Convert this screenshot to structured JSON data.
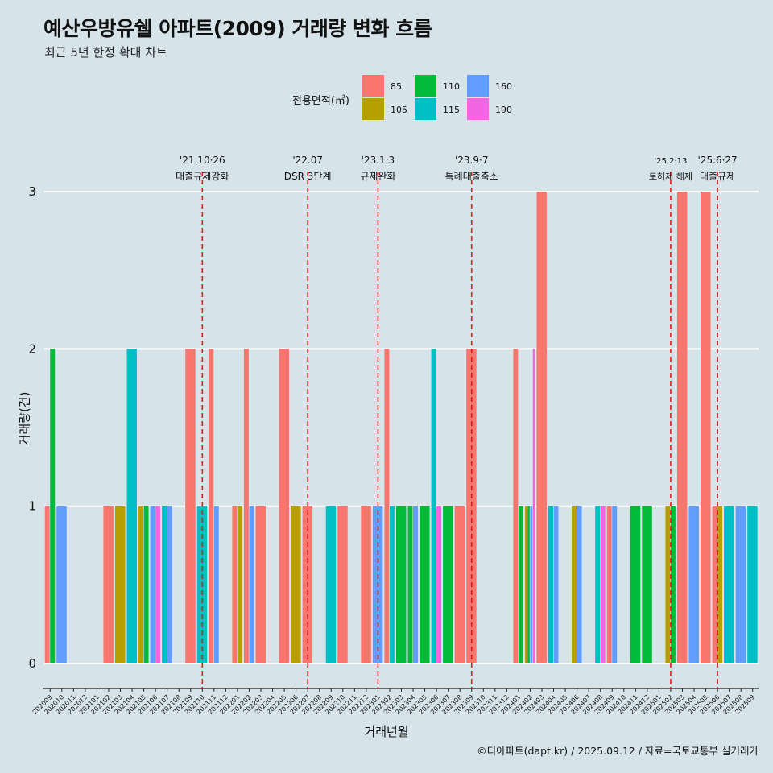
{
  "title": "예산우방유쉘 아파트(2009) 거래량 변화 흐름",
  "subtitle": "최근 5년 한정 확대 차트",
  "credit": "©디아파트(dapt.kr) / 2025.09.12 / 자료=국토교통부 실거래가",
  "legend": {
    "title": "전용면적(㎡)",
    "items": [
      {
        "label": "85",
        "color": "#f8766d"
      },
      {
        "label": "105",
        "color": "#b79f00"
      },
      {
        "label": "110",
        "color": "#00ba38"
      },
      {
        "label": "115",
        "color": "#00bfc4"
      },
      {
        "label": "160",
        "color": "#619cff"
      },
      {
        "label": "190",
        "color": "#f564e3"
      }
    ]
  },
  "chart_data": {
    "type": "bar",
    "xlabel": "거래년월",
    "ylabel": "거래량(건)",
    "ylim": [
      0,
      3
    ],
    "yticks": [
      0,
      1,
      2,
      3
    ],
    "grid": true,
    "legend_position": "top",
    "categories": [
      "202009",
      "202010",
      "202011",
      "202012",
      "202101",
      "202102",
      "202103",
      "202104",
      "202105",
      "202106",
      "202107",
      "202108",
      "202109",
      "202110",
      "202111",
      "202112",
      "202201",
      "202202",
      "202203",
      "202204",
      "202205",
      "202206",
      "202207",
      "202208",
      "202209",
      "202210",
      "202211",
      "202212",
      "202301",
      "202302",
      "202303",
      "202304",
      "202305",
      "202306",
      "202307",
      "202308",
      "202309",
      "202310",
      "202311",
      "202312",
      "202401",
      "202402",
      "202403",
      "202404",
      "202405",
      "202406",
      "202407",
      "202408",
      "202409",
      "202410",
      "202411",
      "202412",
      "202501",
      "202502",
      "202503",
      "202504",
      "202505",
      "202506",
      "202507",
      "202508",
      "202509"
    ],
    "series": [
      {
        "name": "85",
        "color": "#f8766d",
        "values": [
          1,
          0,
          0,
          0,
          0,
          1,
          0,
          0,
          0,
          0,
          0,
          0,
          2,
          0,
          2,
          0,
          1,
          2,
          1,
          0,
          2,
          0,
          1,
          0,
          0,
          1,
          0,
          1,
          0,
          2,
          0,
          0,
          0,
          0,
          0,
          1,
          2,
          0,
          0,
          0,
          2,
          0,
          3,
          0,
          0,
          0,
          0,
          0,
          1,
          0,
          0,
          0,
          0,
          0,
          3,
          0,
          3,
          1,
          0,
          0,
          0
        ]
      },
      {
        "name": "105",
        "color": "#b79f00",
        "values": [
          0,
          0,
          0,
          0,
          0,
          0,
          1,
          0,
          1,
          0,
          0,
          0,
          0,
          0,
          0,
          0,
          1,
          0,
          0,
          0,
          0,
          1,
          0,
          0,
          0,
          0,
          0,
          0,
          0,
          0,
          0,
          0,
          0,
          0,
          0,
          0,
          0,
          0,
          0,
          0,
          0,
          1,
          0,
          0,
          0,
          1,
          0,
          0,
          0,
          0,
          0,
          0,
          0,
          1,
          0,
          0,
          0,
          1,
          0,
          0,
          0
        ]
      },
      {
        "name": "110",
        "color": "#00ba38",
        "values": [
          2,
          0,
          0,
          0,
          0,
          0,
          0,
          0,
          1,
          0,
          0,
          0,
          0,
          0,
          0,
          0,
          0,
          0,
          0,
          0,
          0,
          0,
          0,
          0,
          0,
          0,
          0,
          0,
          0,
          0,
          1,
          1,
          1,
          0,
          1,
          0,
          0,
          0,
          0,
          0,
          1,
          1,
          0,
          0,
          0,
          0,
          0,
          0,
          0,
          0,
          1,
          1,
          0,
          1,
          0,
          0,
          0,
          0,
          0,
          0,
          0
        ]
      },
      {
        "name": "115",
        "color": "#00bfc4",
        "values": [
          0,
          0,
          0,
          0,
          0,
          0,
          0,
          2,
          0,
          0,
          1,
          0,
          0,
          1,
          0,
          0,
          0,
          0,
          0,
          0,
          0,
          0,
          0,
          0,
          1,
          0,
          0,
          0,
          0,
          1,
          0,
          0,
          0,
          2,
          0,
          0,
          0,
          0,
          0,
          0,
          0,
          0,
          0,
          1,
          0,
          0,
          0,
          1,
          0,
          0,
          0,
          0,
          0,
          0,
          0,
          0,
          0,
          0,
          1,
          0,
          1
        ]
      },
      {
        "name": "160",
        "color": "#619cff",
        "values": [
          0,
          1,
          0,
          0,
          0,
          0,
          0,
          0,
          0,
          1,
          1,
          0,
          0,
          0,
          1,
          0,
          0,
          1,
          0,
          0,
          0,
          0,
          0,
          0,
          0,
          0,
          0,
          0,
          1,
          0,
          0,
          1,
          0,
          0,
          0,
          0,
          0,
          0,
          0,
          0,
          0,
          1,
          0,
          1,
          0,
          1,
          0,
          0,
          1,
          0,
          0,
          0,
          0,
          0,
          0,
          1,
          0,
          0,
          0,
          1,
          0
        ]
      },
      {
        "name": "190",
        "color": "#f564e3",
        "values": [
          0,
          0,
          0,
          0,
          0,
          0,
          0,
          0,
          0,
          1,
          0,
          0,
          0,
          0,
          0,
          0,
          0,
          0,
          0,
          0,
          0,
          0,
          0,
          0,
          0,
          0,
          0,
          0,
          0,
          0,
          0,
          0,
          0,
          1,
          0,
          0,
          0,
          0,
          0,
          0,
          0,
          2,
          0,
          0,
          0,
          0,
          0,
          1,
          0,
          0,
          0,
          0,
          0,
          0,
          0,
          0,
          0,
          0,
          0,
          0,
          0
        ]
      }
    ],
    "annotations": [
      {
        "date": "'21.10·26",
        "label": "대출규제강화",
        "x": "202110"
      },
      {
        "date": "'22.07",
        "label": "DSR 3단계",
        "x": "202207"
      },
      {
        "date": "'23.1·3",
        "label": "규제완화",
        "x": "202301"
      },
      {
        "date": "'23.9·7",
        "label": "특례대출축소",
        "x": "202309"
      },
      {
        "date": "'25.2·13",
        "label": "토허제 해제",
        "x": "202502"
      },
      {
        "date": "'25.6·27",
        "label": "대출규제",
        "x": "202506"
      }
    ]
  }
}
